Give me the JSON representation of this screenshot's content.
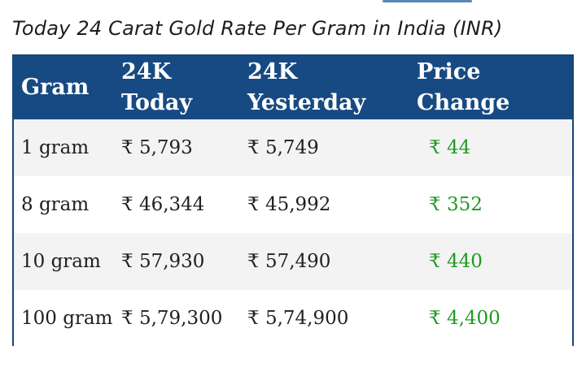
{
  "title": "Today 24 Carat Gold Rate Per Gram in India (INR)",
  "table": {
    "headers": [
      "Gram",
      "24K Today",
      "24K Yesterday",
      "Price Change"
    ],
    "rows": [
      [
        "1 gram",
        "₹ 5,793",
        "₹ 5,749",
        "₹ 44"
      ],
      [
        "8 gram",
        "₹ 46,344",
        "₹ 45,992",
        "₹ 352"
      ],
      [
        "10 gram",
        "₹ 57,930",
        "₹ 57,490",
        "₹ 440"
      ],
      [
        "100 gram",
        "₹ 5,79,300",
        "₹ 5,74,900",
        "₹ 4,400"
      ]
    ]
  },
  "colors": {
    "header_bg": "#174a82",
    "header_text": "#ffffff",
    "change_text": "#1f9a1f",
    "stripe": "#f3f3f3"
  }
}
